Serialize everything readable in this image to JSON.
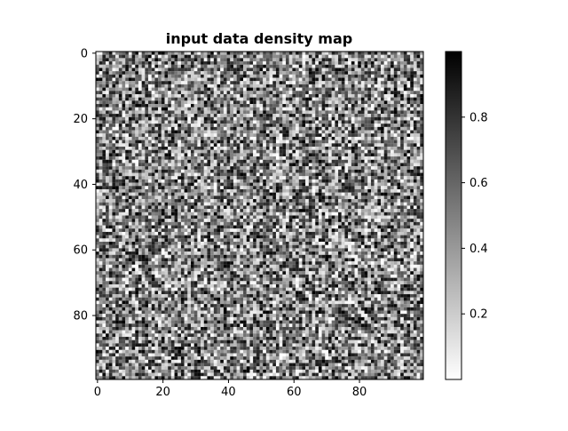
{
  "chart_data": {
    "type": "heatmap",
    "title": "input data density map",
    "xlabel": "",
    "ylabel": "",
    "rows": 100,
    "cols": 100,
    "xlim": [
      -0.5,
      99.5
    ],
    "ylim": [
      99.5,
      -0.5
    ],
    "x_ticks": [
      0,
      20,
      40,
      60,
      80
    ],
    "y_ticks": [
      0,
      20,
      40,
      60,
      80
    ],
    "x_tick_labels": [
      "0",
      "20",
      "40",
      "60",
      "80"
    ],
    "y_tick_labels": [
      "0",
      "20",
      "40",
      "60",
      "80"
    ],
    "colormap": "Greys",
    "colormap_low": "#ffffff",
    "colormap_high": "#000000",
    "value_range": [
      0.0,
      1.0
    ],
    "cell_values": "uniform random values in [0, 1) per cell (noise image)",
    "colorbar": {
      "ticks": [
        0.2,
        0.4,
        0.6,
        0.8
      ],
      "tick_labels": [
        "0.2",
        "0.4",
        "0.6",
        "0.8"
      ],
      "range": [
        0.0,
        1.0
      ]
    },
    "grid": false,
    "legend": "none"
  }
}
